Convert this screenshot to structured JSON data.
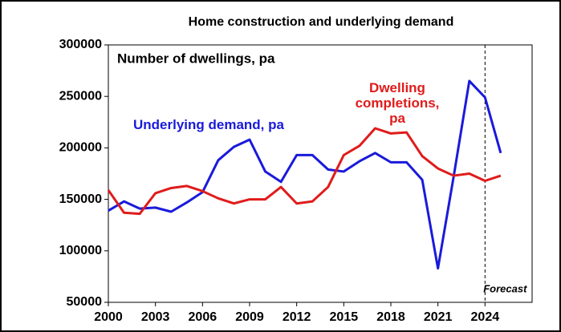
{
  "chart_data": {
    "type": "line",
    "title": "Home construction and underlying demand",
    "y_label": "Number of dwellings, pa",
    "x": [
      2000,
      2001,
      2002,
      2003,
      2004,
      2005,
      2006,
      2007,
      2008,
      2009,
      2010,
      2011,
      2012,
      2013,
      2014,
      2015,
      2016,
      2017,
      2018,
      2019,
      2020,
      2021,
      2022,
      2023,
      2024,
      2025
    ],
    "series": [
      {
        "name": "Underlying demand, pa",
        "color": "#1a1adb",
        "values": [
          139000,
          148000,
          141000,
          142000,
          138000,
          147000,
          157000,
          188000,
          201000,
          208000,
          177000,
          167000,
          193000,
          193000,
          179000,
          177000,
          187000,
          195000,
          186000,
          186000,
          169000,
          83000,
          172000,
          265000,
          249000,
          195000
        ]
      },
      {
        "name": "Dwelling completions, pa",
        "color": "#e01b1b",
        "values": [
          159000,
          137000,
          136000,
          156000,
          161000,
          163000,
          158000,
          151000,
          146000,
          150000,
          150000,
          162000,
          146000,
          148000,
          162000,
          193000,
          202000,
          219000,
          214000,
          215000,
          192000,
          180000,
          173000,
          175000,
          168000,
          173000
        ]
      }
    ],
    "xlim": [
      2000,
      2027
    ],
    "ylim": [
      50000,
      300000
    ],
    "xticks": [
      2000,
      2003,
      2006,
      2009,
      2012,
      2015,
      2018,
      2021,
      2024
    ],
    "yticks": [
      50000,
      100000,
      150000,
      200000,
      250000,
      300000
    ],
    "forecast_x": 2024,
    "forecast_label": "Forecast"
  }
}
